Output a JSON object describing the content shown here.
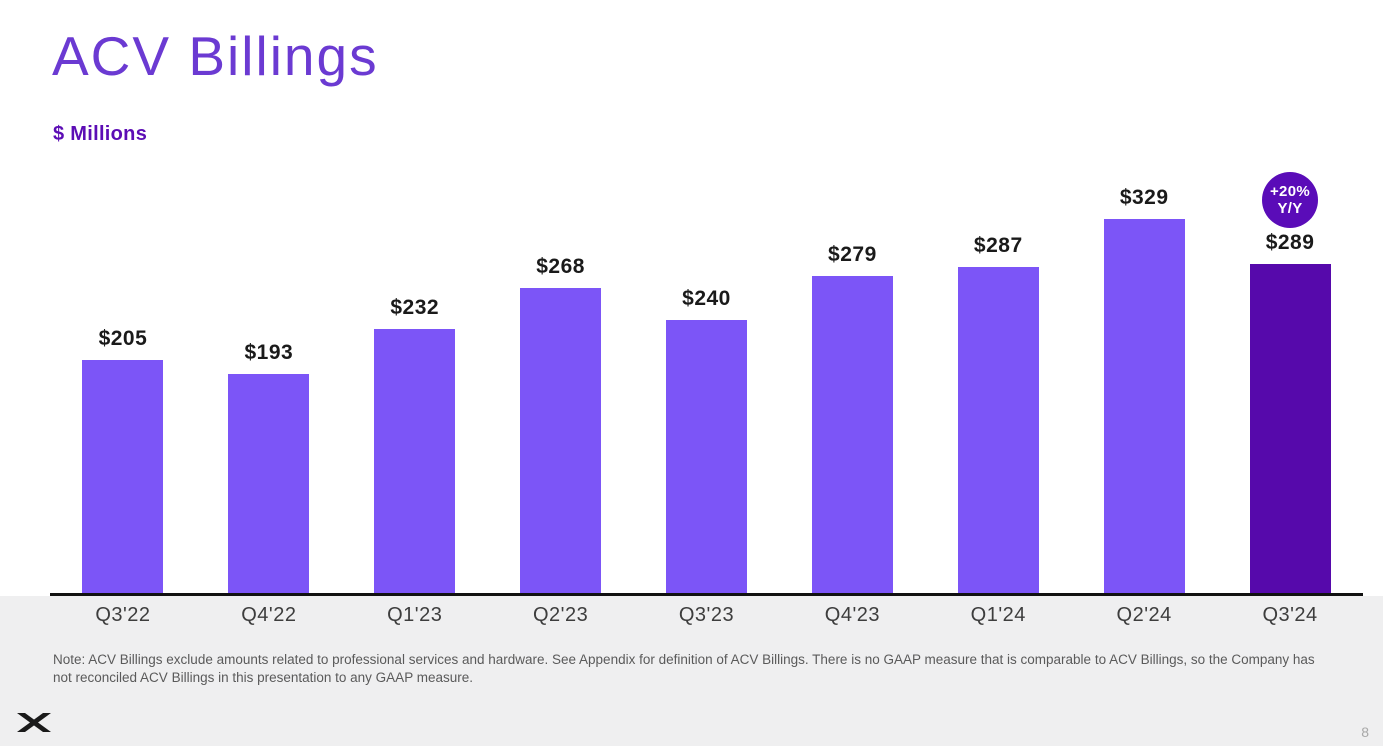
{
  "slide": {
    "title": "ACV Billings",
    "subtitle": "$ Millions",
    "note": "Note: ACV Billings exclude amounts related to professional services and hardware. See Appendix for definition of ACV Billings. There is no GAAP measure that is comparable to ACV Billings, so the Company has not reconciled ACV Billings in this presentation to any GAAP measure.",
    "page_number": "8",
    "logo": "x-logo"
  },
  "badge": {
    "line1": "+20%",
    "line2": "Y/Y"
  },
  "colors": {
    "title_purple": "#6b3ad2",
    "subtitle_purple": "#5c0db5",
    "bar_purple": "#7c55f7",
    "highlight_purple": "#5609ab",
    "badge_purple": "#5a0cb8",
    "axis_black": "#111111",
    "footer_gray": "#efeff0",
    "value_label": "#1a1a1a"
  },
  "chart_data": {
    "type": "bar",
    "title": "ACV Billings",
    "ylabel": "$ Millions",
    "categories": [
      "Q3'22",
      "Q4'22",
      "Q1'23",
      "Q2'23",
      "Q3'23",
      "Q4'23",
      "Q1'24",
      "Q2'24",
      "Q3'24"
    ],
    "values": [
      205,
      193,
      232,
      268,
      240,
      279,
      287,
      329,
      289
    ],
    "value_labels": [
      "$205",
      "$193",
      "$232",
      "$268",
      "$240",
      "$279",
      "$287",
      "$329",
      "$289"
    ],
    "highlight_index": 8,
    "annotation": {
      "text": "+20% Y/Y",
      "applies_to": "Q3'24"
    },
    "ylim": [
      0,
      374
    ],
    "grid": false,
    "legend": false
  }
}
